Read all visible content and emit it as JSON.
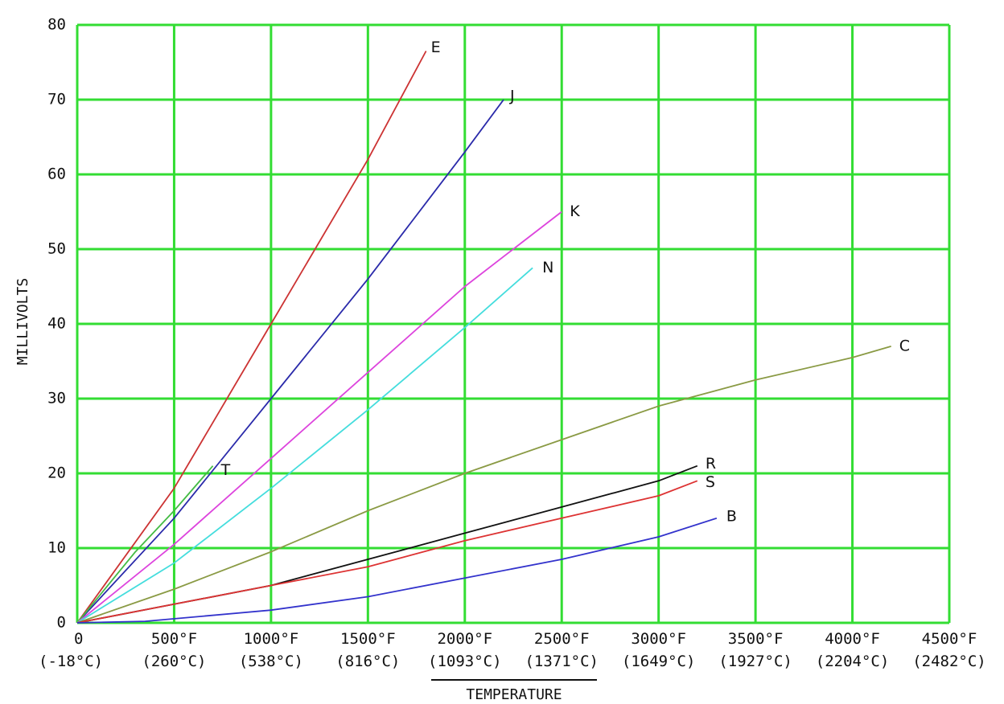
{
  "chart_data": {
    "type": "line",
    "xlabel": "TEMPERATURE",
    "ylabel": "MILLIVOLTS",
    "xlim": [
      0,
      4500
    ],
    "ylim": [
      0,
      80
    ],
    "grid": true,
    "x_ticks": [
      {
        "value": 0,
        "label": "0",
        "sublabel": "(-18°C)"
      },
      {
        "value": 500,
        "label": "500°F",
        "sublabel": "(260°C)"
      },
      {
        "value": 1000,
        "label": "1000°F",
        "sublabel": "(538°C)"
      },
      {
        "value": 1500,
        "label": "1500°F",
        "sublabel": "(816°C)"
      },
      {
        "value": 2000,
        "label": "2000°F",
        "sublabel": "(1093°C)"
      },
      {
        "value": 2500,
        "label": "2500°F",
        "sublabel": "(1371°C)"
      },
      {
        "value": 3000,
        "label": "3000°F",
        "sublabel": "(1649°C)"
      },
      {
        "value": 3500,
        "label": "3500°F",
        "sublabel": "(1927°C)"
      },
      {
        "value": 4000,
        "label": "4000°F",
        "sublabel": "(2204°C)"
      },
      {
        "value": 4500,
        "label": "4500°F",
        "sublabel": "(2482°C)"
      }
    ],
    "y_ticks": [
      {
        "value": 0,
        "label": "0"
      },
      {
        "value": 10,
        "label": "10"
      },
      {
        "value": 20,
        "label": "20"
      },
      {
        "value": 30,
        "label": "30"
      },
      {
        "value": 40,
        "label": "40"
      },
      {
        "value": 50,
        "label": "50"
      },
      {
        "value": 60,
        "label": "60"
      },
      {
        "value": 70,
        "label": "70"
      },
      {
        "value": 80,
        "label": "80"
      }
    ],
    "colors": {
      "grid": "#33dd33",
      "E": "#cc3333",
      "J": "#2a2aaa",
      "T": "#44bb44",
      "K": "#dd44dd",
      "N": "#44dddd",
      "C": "#8a9a44",
      "R": "#111111",
      "S": "#dd3333",
      "B": "#3333cc"
    },
    "series": [
      {
        "name": "E",
        "points": [
          [
            0,
            0
          ],
          [
            500,
            18
          ],
          [
            1000,
            40
          ],
          [
            1500,
            62
          ],
          [
            1800,
            76.5
          ]
        ]
      },
      {
        "name": "J",
        "points": [
          [
            0,
            0
          ],
          [
            500,
            14
          ],
          [
            1000,
            30
          ],
          [
            1500,
            46
          ],
          [
            2000,
            63
          ],
          [
            2200,
            70
          ]
        ]
      },
      {
        "name": "T",
        "points": [
          [
            0,
            0
          ],
          [
            300,
            9.5
          ],
          [
            500,
            15
          ],
          [
            700,
            21
          ]
        ]
      },
      {
        "name": "K",
        "points": [
          [
            0,
            0
          ],
          [
            500,
            10.5
          ],
          [
            1000,
            22
          ],
          [
            1500,
            33.5
          ],
          [
            2000,
            45
          ],
          [
            2500,
            55
          ]
        ]
      },
      {
        "name": "N",
        "points": [
          [
            0,
            0
          ],
          [
            500,
            8
          ],
          [
            1000,
            18
          ],
          [
            1500,
            28.5
          ],
          [
            2000,
            39.5
          ],
          [
            2350,
            47.5
          ]
        ]
      },
      {
        "name": "C",
        "points": [
          [
            0,
            0
          ],
          [
            500,
            4.5
          ],
          [
            1000,
            9.5
          ],
          [
            1500,
            15
          ],
          [
            2000,
            20
          ],
          [
            2500,
            24.5
          ],
          [
            3000,
            29
          ],
          [
            3500,
            32.5
          ],
          [
            4000,
            35.5
          ],
          [
            4200,
            37
          ]
        ]
      },
      {
        "name": "R",
        "points": [
          [
            0,
            0
          ],
          [
            500,
            2.5
          ],
          [
            1000,
            5
          ],
          [
            1500,
            8.5
          ],
          [
            2000,
            12
          ],
          [
            2500,
            15.5
          ],
          [
            3000,
            19
          ],
          [
            3200,
            21
          ]
        ]
      },
      {
        "name": "S",
        "points": [
          [
            0,
            0
          ],
          [
            500,
            2.5
          ],
          [
            1000,
            5
          ],
          [
            1500,
            7.5
          ],
          [
            2000,
            11
          ],
          [
            2500,
            14
          ],
          [
            3000,
            17
          ],
          [
            3200,
            19
          ]
        ]
      },
      {
        "name": "B",
        "points": [
          [
            0,
            0
          ],
          [
            350,
            0.2
          ],
          [
            1000,
            1.7
          ],
          [
            1500,
            3.5
          ],
          [
            2000,
            6
          ],
          [
            2500,
            8.5
          ],
          [
            3000,
            11.5
          ],
          [
            3300,
            14
          ]
        ]
      }
    ],
    "series_labels": [
      {
        "name": "E",
        "text": "E"
      },
      {
        "name": "J",
        "text": "J"
      },
      {
        "name": "T",
        "text": "T"
      },
      {
        "name": "K",
        "text": "K"
      },
      {
        "name": "N",
        "text": "N"
      },
      {
        "name": "C",
        "text": "C"
      },
      {
        "name": "R",
        "text": "R"
      },
      {
        "name": "S",
        "text": "S"
      },
      {
        "name": "B",
        "text": "B"
      }
    ]
  }
}
